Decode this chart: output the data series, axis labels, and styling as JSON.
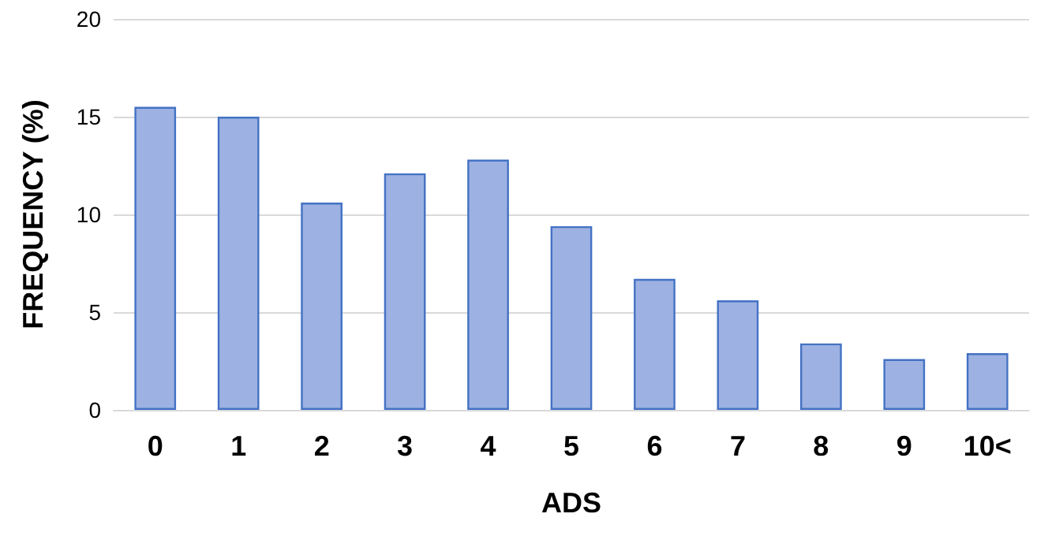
{
  "chart_data": {
    "type": "bar",
    "xlabel": "ADS",
    "ylabel": "FREQUENCY (%)",
    "categories": [
      "0",
      "1",
      "2",
      "3",
      "4",
      "5",
      "6",
      "7",
      "8",
      "9",
      "10<"
    ],
    "values": [
      15.5,
      15.0,
      10.6,
      12.1,
      12.8,
      9.4,
      6.7,
      5.6,
      3.4,
      2.6,
      2.9
    ],
    "color": "#9db2e2",
    "ylim": [
      0,
      20
    ],
    "yticks": [
      0,
      5,
      10,
      15,
      20
    ],
    "grid": "y"
  }
}
